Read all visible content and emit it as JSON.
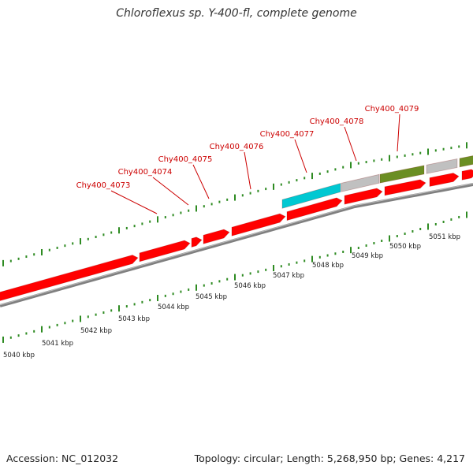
{
  "title": "Chloroflexus sp. Y-400-fl, complete genome",
  "footer": {
    "accession": "Accession: NC_012032",
    "stats": "Topology: circular; Length: 5,268,950 bp; Genes: 4,217"
  },
  "colors": {
    "gene_forward": "#ff0000",
    "gene_highlight": "#00c8d2",
    "gene_neutral": "#c0c0c0",
    "gene_other": "#6b8e23",
    "axis": "#808080",
    "tick": "#2e8b22",
    "label": "#cc0000"
  },
  "gene_labels": [
    {
      "id": "Chy400_4073"
    },
    {
      "id": "Chy400_4074"
    },
    {
      "id": "Chy400_4075"
    },
    {
      "id": "Chy400_4076"
    },
    {
      "id": "Chy400_4077"
    },
    {
      "id": "Chy400_4078"
    },
    {
      "id": "Chy400_4079"
    }
  ],
  "scale_labels": [
    "5040 kbp",
    "5041 kbp",
    "5042 kbp",
    "5043 kbp",
    "5044 kbp",
    "5045 kbp",
    "5046 kbp",
    "5047 kbp",
    "5048 kbp",
    "5049 kbp",
    "5050 kbp",
    "5051 kbp"
  ]
}
